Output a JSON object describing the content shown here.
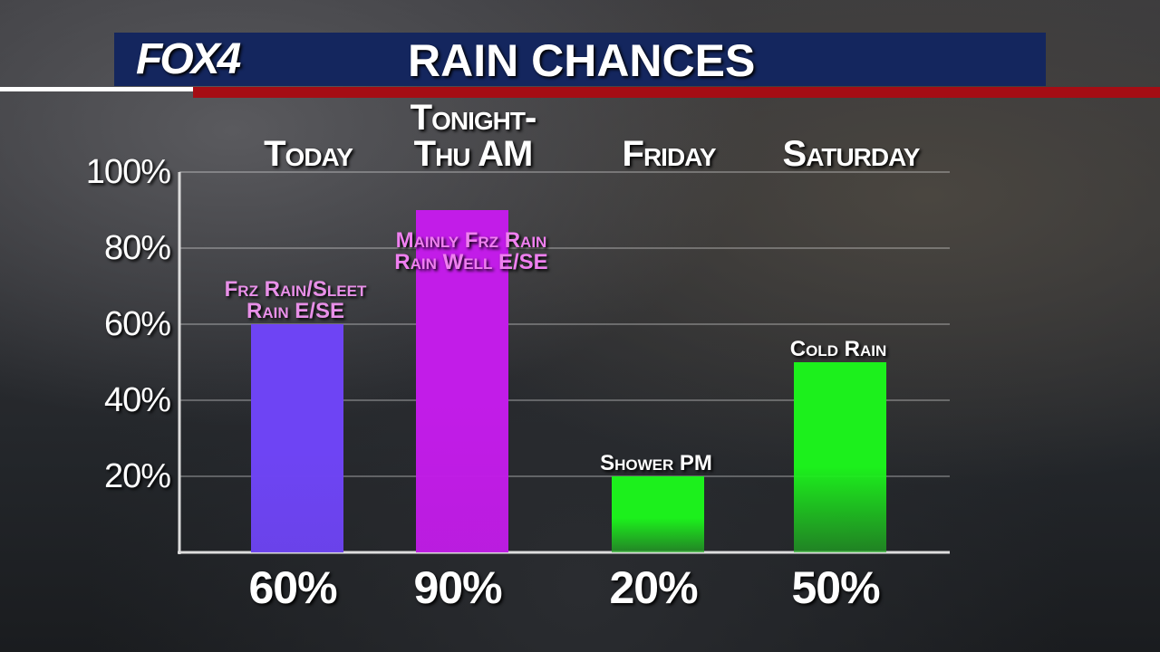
{
  "logo": "FOX4",
  "chart_data": {
    "type": "bar",
    "title": "RAIN CHANCES",
    "categories": [
      "Today",
      "Tonight-\nThu AM",
      "Friday",
      "Saturday"
    ],
    "values": [
      60,
      90,
      20,
      50
    ],
    "value_labels": [
      "60%",
      "90%",
      "20%",
      "50%"
    ],
    "annotations": [
      "Frz Rain/Sleet\nRain E/SE",
      "Mainly Frz Rain\nRain Well E/SE",
      "Shower PM",
      "Cold Rain"
    ],
    "annotation_colors": [
      "#e890e8",
      "#f080f0",
      "#ffffff",
      "#ffffff"
    ],
    "colors": [
      "#6e44f4",
      "#c21ce8",
      "#1cf01c",
      "#1cf01c"
    ],
    "ylim": [
      0,
      100
    ],
    "yticks": [
      {
        "value": 20,
        "label": "20%"
      },
      {
        "value": 40,
        "label": "40%"
      },
      {
        "value": 60,
        "label": "60%"
      },
      {
        "value": 80,
        "label": "80%"
      },
      {
        "value": 100,
        "label": "100%"
      }
    ],
    "grid": true
  }
}
